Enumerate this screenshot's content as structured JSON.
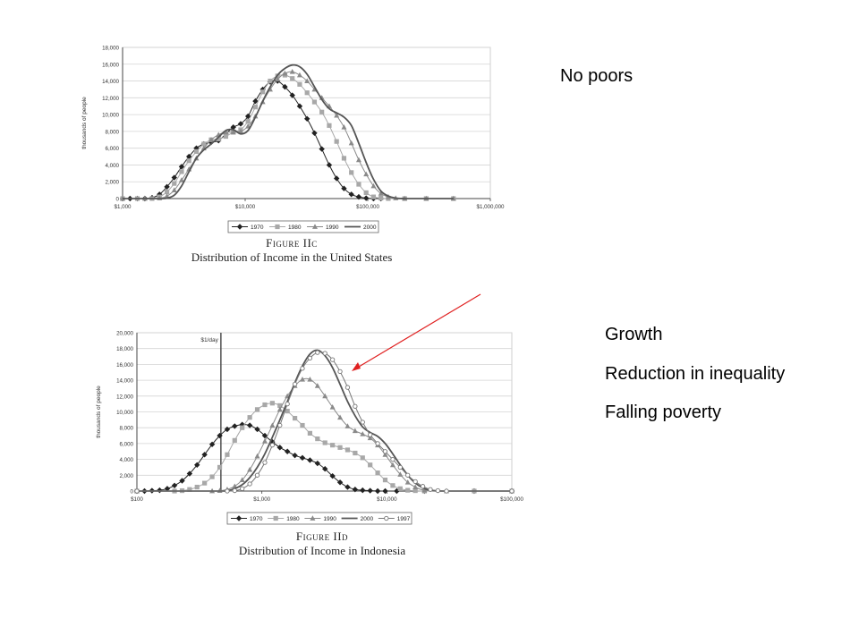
{
  "notes": {
    "top": "No poors",
    "bottom": [
      "Growth",
      "Reduction in inequality",
      "Falling poverty"
    ]
  },
  "chart_data": [
    {
      "type": "line",
      "figure_label": "Figure IIc",
      "title": "Distribution of Income in the United States",
      "ylabel": "thousands of people",
      "xscale": "log",
      "x_ticks": [
        1000,
        10000,
        100000,
        1000000
      ],
      "x_tick_labels": [
        "$1,000",
        "$10,000",
        "$100,000",
        "$1,000,000"
      ],
      "ylim": [
        0,
        18000
      ],
      "y_ticks": [
        0,
        2000,
        4000,
        6000,
        8000,
        10000,
        12000,
        14000,
        16000,
        18000
      ],
      "y_tick_labels": [
        "0",
        "2,000",
        "4,000",
        "6,000",
        "8,000",
        "10,000",
        "12,000",
        "14,000",
        "16,000",
        "18,000"
      ],
      "grid": true,
      "legend_position": "bottom",
      "series": [
        {
          "name": "1970",
          "marker": "diamond",
          "color": "#222222",
          "x": [
            1000,
            1150,
            1320,
            1520,
            1740,
            2000,
            2300,
            2640,
            3030,
            3480,
            4000,
            4600,
            5280,
            6060,
            6960,
            8000,
            9190,
            10550,
            12120,
            13920,
            16000,
            18380,
            21100,
            24250,
            27850,
            32000,
            36760,
            42200,
            48500,
            55700,
            64000,
            73500,
            84450,
            97000,
            111400,
            128000
          ],
          "y": [
            0,
            0,
            0,
            0,
            100,
            500,
            1400,
            2500,
            3800,
            5000,
            6000,
            6500,
            6700,
            6900,
            7700,
            8500,
            8900,
            9800,
            11600,
            13000,
            13900,
            14000,
            13300,
            12300,
            11000,
            9500,
            7800,
            5900,
            4000,
            2400,
            1200,
            500,
            200,
            50,
            0,
            0
          ]
        },
        {
          "name": "1980",
          "marker": "square",
          "color": "#a8a8a8",
          "x": [
            1000,
            1320,
            1740,
            2000,
            2300,
            2640,
            3030,
            3480,
            4000,
            4600,
            5280,
            6060,
            6960,
            8000,
            9190,
            10550,
            12120,
            13920,
            16000,
            18380,
            21100,
            24250,
            27850,
            32000,
            36760,
            42200,
            48500,
            55700,
            64000,
            73500,
            84450,
            97000,
            111400,
            128000,
            147000,
            200000,
            300000,
            500000
          ],
          "y": [
            0,
            0,
            0,
            200,
            800,
            1800,
            3200,
            4500,
            5600,
            6500,
            7000,
            7100,
            7400,
            7900,
            8200,
            9200,
            10900,
            12700,
            14000,
            14600,
            14700,
            14300,
            13600,
            12600,
            11500,
            10300,
            8700,
            6800,
            4800,
            3100,
            1700,
            700,
            200,
            50,
            0,
            0,
            0,
            0
          ]
        },
        {
          "name": "1990",
          "marker": "triangle",
          "color": "#8a8a8a",
          "x": [
            1000,
            1520,
            2000,
            2300,
            2640,
            3030,
            3480,
            4000,
            4600,
            5280,
            6060,
            6960,
            8000,
            9190,
            10550,
            12120,
            13920,
            16000,
            18380,
            21100,
            24250,
            27850,
            32000,
            36760,
            42200,
            48500,
            55700,
            64000,
            73500,
            84450,
            97000,
            111400,
            128000,
            147000,
            169000,
            200000,
            300000,
            500000
          ],
          "y": [
            0,
            0,
            50,
            300,
            1000,
            2200,
            3500,
            4800,
            6000,
            7000,
            7600,
            7900,
            7900,
            8000,
            8600,
            9800,
            11500,
            13000,
            14200,
            14900,
            15100,
            14700,
            14000,
            13000,
            12000,
            11000,
            9900,
            8500,
            6600,
            4600,
            2900,
            1500,
            600,
            200,
            50,
            0,
            0,
            0
          ]
        },
        {
          "name": "2000",
          "marker": "none",
          "color": "#555555",
          "x": [
            1000,
            2000,
            2300,
            2640,
            3030,
            3480,
            4000,
            4600,
            5280,
            6060,
            6960,
            8000,
            9190,
            10550,
            12120,
            13920,
            16000,
            18380,
            21100,
            24250,
            27850,
            32000,
            36760,
            42200,
            48500,
            55700,
            64000,
            73500,
            84450,
            97000,
            111400,
            128000,
            147000,
            169000,
            200000,
            300000,
            500000
          ],
          "y": [
            0,
            0,
            50,
            400,
            1500,
            3200,
            4800,
            5800,
            6500,
            7300,
            8100,
            8200,
            7700,
            8100,
            9700,
            11600,
            13300,
            14700,
            15500,
            15900,
            15700,
            14800,
            13300,
            11800,
            10700,
            10200,
            9700,
            8700,
            6600,
            4300,
            2300,
            900,
            300,
            50,
            0,
            0,
            0
          ]
        }
      ]
    },
    {
      "type": "line",
      "figure_label": "Figure IId",
      "title": "Distribution of Income in Indonesia",
      "ylabel": "thousands of people",
      "xscale": "log",
      "x_ticks": [
        100,
        1000,
        10000,
        100000
      ],
      "x_tick_labels": [
        "$100",
        "$1,000",
        "$10,000",
        "$100,000"
      ],
      "ylim": [
        0,
        20000
      ],
      "y_ticks": [
        0,
        2000,
        4000,
        6000,
        8000,
        10000,
        12000,
        14000,
        16000,
        18000,
        20000
      ],
      "y_tick_labels": [
        "0",
        "2,000",
        "4,000",
        "6,000",
        "8,000",
        "10,000",
        "12,000",
        "14,000",
        "16,000",
        "18,000",
        "20,000"
      ],
      "grid": true,
      "legend_position": "bottom",
      "annotation": {
        "label": "$1/day",
        "x": 470
      },
      "series": [
        {
          "name": "1970",
          "marker": "diamond",
          "color": "#222222",
          "x": [
            100,
            115,
            132,
            152,
            175,
            200,
            230,
            264,
            303,
            348,
            400,
            460,
            528,
            606,
            696,
            800,
            919,
            1056,
            1213,
            1393,
            1600,
            1838,
            2111,
            2425,
            2786,
            3200,
            3676,
            4223,
            4851,
            5572,
            6400,
            7352,
            8445,
            9700,
            12000,
            20000,
            50000,
            100000
          ],
          "y": [
            0,
            0,
            50,
            100,
            300,
            700,
            1300,
            2200,
            3300,
            4600,
            5900,
            7000,
            7800,
            8200,
            8400,
            8300,
            7800,
            7000,
            6200,
            5500,
            5000,
            4500,
            4200,
            3900,
            3500,
            2800,
            1900,
            1100,
            500,
            200,
            100,
            50,
            0,
            0,
            0,
            0,
            0,
            0
          ]
        },
        {
          "name": "1980",
          "marker": "square",
          "color": "#a8a8a8",
          "x": [
            100,
            200,
            230,
            264,
            303,
            348,
            400,
            460,
            528,
            606,
            696,
            800,
            919,
            1056,
            1213,
            1393,
            1600,
            1838,
            2111,
            2425,
            2786,
            3200,
            3676,
            4223,
            4851,
            5572,
            6400,
            7352,
            8445,
            9700,
            11150,
            12800,
            14700,
            16900,
            20000,
            50000,
            100000
          ],
          "y": [
            0,
            0,
            50,
            200,
            500,
            1000,
            1800,
            3000,
            4600,
            6400,
            8000,
            9300,
            10300,
            10900,
            11100,
            10800,
            10100,
            9200,
            8300,
            7300,
            6600,
            6100,
            5800,
            5500,
            5200,
            4800,
            4200,
            3300,
            2300,
            1400,
            700,
            300,
            100,
            50,
            0,
            0,
            0
          ]
        },
        {
          "name": "1990",
          "marker": "triangle",
          "color": "#8a8a8a",
          "x": [
            100,
            400,
            460,
            528,
            606,
            696,
            800,
            919,
            1056,
            1213,
            1393,
            1600,
            1838,
            2111,
            2425,
            2786,
            3200,
            3676,
            4223,
            4851,
            5572,
            6400,
            7352,
            8445,
            9700,
            11150,
            12800,
            14700,
            16900,
            20000,
            30000,
            100000
          ],
          "y": [
            0,
            0,
            50,
            200,
            600,
            1400,
            2700,
            4400,
            6300,
            8300,
            10300,
            12000,
            13300,
            14100,
            14100,
            13300,
            12000,
            10600,
            9300,
            8200,
            7600,
            7200,
            6700,
            5800,
            4600,
            3300,
            2100,
            1100,
            500,
            100,
            0,
            0
          ]
        },
        {
          "name": "2000",
          "marker": "none",
          "color": "#555555",
          "x": [
            100,
            460,
            528,
            606,
            696,
            800,
            919,
            1056,
            1213,
            1393,
            1600,
            1838,
            2111,
            2425,
            2786,
            3200,
            3676,
            4223,
            4851,
            5572,
            6400,
            7352,
            8445,
            9700,
            11150,
            12800,
            14700,
            16900,
            19400,
            22300,
            30000,
            100000
          ],
          "y": [
            0,
            0,
            50,
            300,
            800,
            1700,
            3000,
            4700,
            6800,
            9000,
            11300,
            13700,
            15800,
            17300,
            17800,
            17100,
            15600,
            13500,
            11300,
            9500,
            8100,
            7400,
            6900,
            6000,
            4700,
            3300,
            2000,
            1000,
            400,
            100,
            0,
            0
          ]
        },
        {
          "name": "1997",
          "marker": "circle",
          "color": "#777777",
          "x": [
            100,
            528,
            606,
            696,
            800,
            919,
            1056,
            1213,
            1393,
            1600,
            1838,
            2111,
            2425,
            2786,
            3200,
            3676,
            4223,
            4851,
            5572,
            6400,
            7352,
            8445,
            9700,
            11150,
            12800,
            14700,
            16900,
            19400,
            22300,
            25600,
            30000,
            100000
          ],
          "y": [
            0,
            0,
            50,
            300,
            900,
            2000,
            3600,
            5800,
            8300,
            11000,
            13500,
            15500,
            16800,
            17500,
            17400,
            16600,
            15100,
            13100,
            10700,
            8700,
            7100,
            6000,
            5000,
            4000,
            3000,
            2000,
            1200,
            600,
            200,
            50,
            0,
            0
          ]
        }
      ]
    }
  ]
}
